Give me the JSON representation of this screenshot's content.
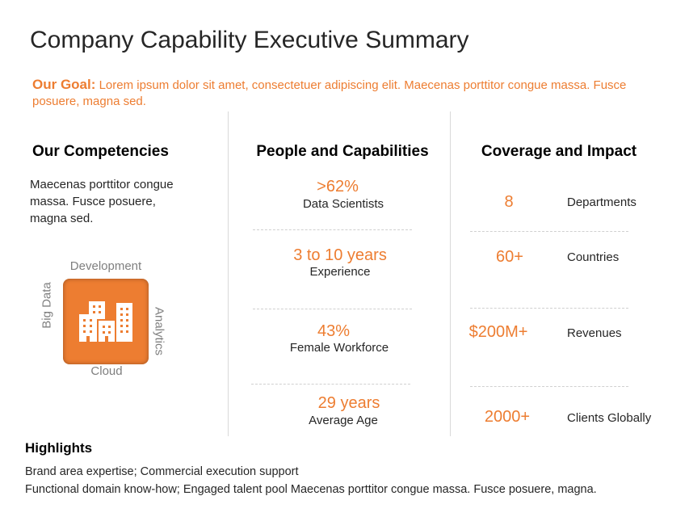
{
  "title": "Company Capability Executive Summary",
  "goal": {
    "label": "Our Goal:",
    "text": " Lorem ipsum dolor sit amet, consectetuer adipiscing elit. Maecenas porttitor congue massa. Fusce posuere, magna sed."
  },
  "competencies": {
    "heading": "Our Competencies",
    "lines": [
      "Maecenas porttitor congue",
      "massa. Fusce posuere,",
      "magna sed."
    ],
    "icon": "buildings-icon",
    "labels": {
      "top": "Development",
      "left": "Big Data",
      "right": "Analytics",
      "bottom": "Cloud"
    }
  },
  "people": {
    "heading": "People and Capabilities",
    "items": [
      {
        "value": ">62%",
        "label": "Data Scientists"
      },
      {
        "value": "3 to 10 years",
        "label": "Experience"
      },
      {
        "value": "43%",
        "label": "Female Workforce"
      },
      {
        "value": "29 years",
        "label": "Average Age"
      }
    ]
  },
  "coverage": {
    "heading": "Coverage and Impact",
    "items": [
      {
        "value": "8",
        "label": "Departments"
      },
      {
        "value": "60+",
        "label": "Countries"
      },
      {
        "value": "$200M+",
        "label": "Revenues"
      },
      {
        "value": "2000+",
        "label": "Clients Globally"
      }
    ]
  },
  "highlights": {
    "heading": "Highlights",
    "lines": [
      "Brand area expertise; Commercial execution support",
      "Functional domain know-how;  Engaged talent pool Maecenas porttitor congue massa. Fusce posuere, magna."
    ]
  },
  "colors": {
    "accent": "#ED7D31"
  }
}
